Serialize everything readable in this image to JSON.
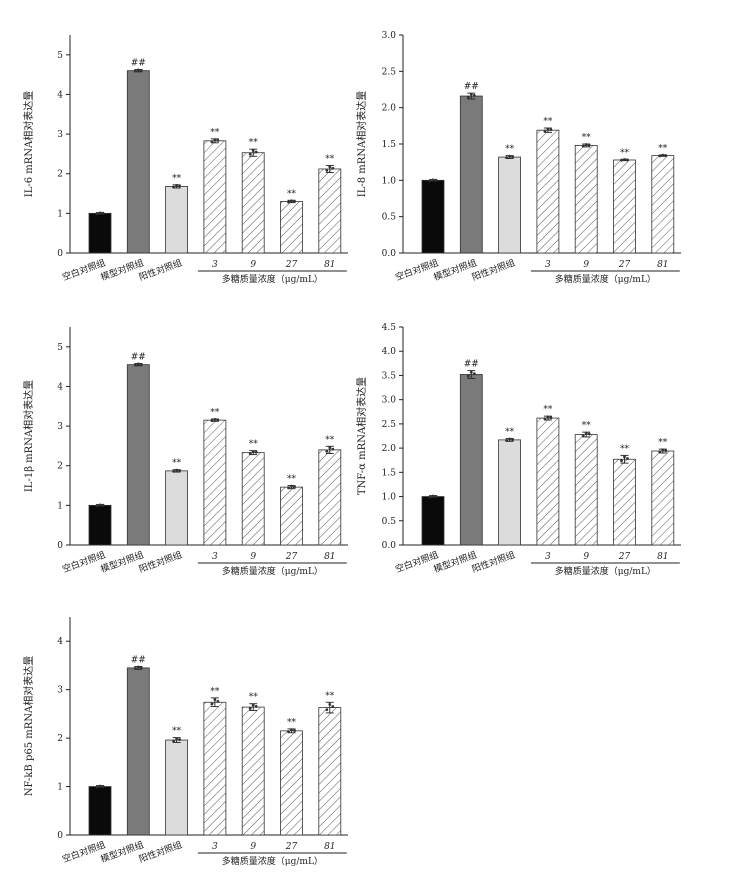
{
  "figure": {
    "groups": [
      "空白对照组",
      "模型对照组",
      "阳性对照组",
      "3",
      "9",
      "27",
      "81"
    ],
    "group_axis_label": "多糖质量浓度（μg/mL）",
    "colors": {
      "blank": "#0a0a0a",
      "model": "#7a7a7a",
      "positive": "#dcdcdc",
      "hatch": "#5a5a5a",
      "axis": "#222222"
    }
  },
  "chart_data": [
    {
      "type": "bar",
      "ylabel": "IL-6 mRNA相对表达量",
      "ylim": [
        0,
        5.5
      ],
      "yticks": [
        "0",
        "1",
        "2",
        "3",
        "4",
        "5"
      ],
      "values": [
        1.0,
        4.6,
        1.68,
        2.83,
        2.53,
        1.3,
        2.12
      ],
      "errors": [
        0.02,
        0.03,
        0.04,
        0.05,
        0.09,
        0.03,
        0.09
      ],
      "annotations": [
        "",
        "##",
        "**",
        "**",
        "**",
        "**",
        "**"
      ]
    },
    {
      "type": "bar",
      "ylabel": "IL-8 mRNA相对表达量",
      "ylim": [
        0,
        3.0
      ],
      "yticks": [
        "0.0",
        "0.5",
        "1.0",
        "1.5",
        "2.0",
        "2.5",
        "3.0"
      ],
      "values": [
        1.0,
        2.16,
        1.32,
        1.69,
        1.48,
        1.28,
        1.34
      ],
      "errors": [
        0.01,
        0.04,
        0.02,
        0.03,
        0.02,
        0.01,
        0.01
      ],
      "annotations": [
        "",
        "##",
        "**",
        "**",
        "**",
        "**",
        "**"
      ]
    },
    {
      "type": "bar",
      "ylabel": "IL-1β mRNA相对表达量",
      "ylim": [
        0,
        5.5
      ],
      "yticks": [
        "0",
        "1",
        "2",
        "3",
        "4",
        "5"
      ],
      "values": [
        1.0,
        4.55,
        1.87,
        3.15,
        2.33,
        1.46,
        2.4
      ],
      "errors": [
        0.02,
        0.03,
        0.03,
        0.03,
        0.05,
        0.04,
        0.09
      ],
      "annotations": [
        "",
        "##",
        "**",
        "**",
        "**",
        "**",
        "**"
      ]
    },
    {
      "type": "bar",
      "ylabel": "TNF-α mRNA相对表达量",
      "ylim": [
        0,
        4.5
      ],
      "yticks": [
        "0.0",
        "0.5",
        "1.0",
        "1.5",
        "2.0",
        "2.5",
        "3.0",
        "3.5",
        "4.0",
        "4.5"
      ],
      "values": [
        1.0,
        3.52,
        2.17,
        2.62,
        2.28,
        1.77,
        1.94
      ],
      "errors": [
        0.02,
        0.08,
        0.03,
        0.04,
        0.05,
        0.08,
        0.04
      ],
      "annotations": [
        "",
        "##",
        "**",
        "**",
        "**",
        "**",
        "**"
      ]
    },
    {
      "type": "bar",
      "ylabel": "NF-kB p65 mRNA相对表达量",
      "ylim": [
        0,
        4.5
      ],
      "yticks": [
        "0",
        "1",
        "2",
        "3",
        "4"
      ],
      "values": [
        1.0,
        3.45,
        1.96,
        2.74,
        2.64,
        2.15,
        2.63
      ],
      "errors": [
        0.02,
        0.03,
        0.05,
        0.09,
        0.07,
        0.04,
        0.11
      ],
      "annotations": [
        "",
        "##",
        "**",
        "**",
        "**",
        "**",
        "**"
      ]
    }
  ]
}
